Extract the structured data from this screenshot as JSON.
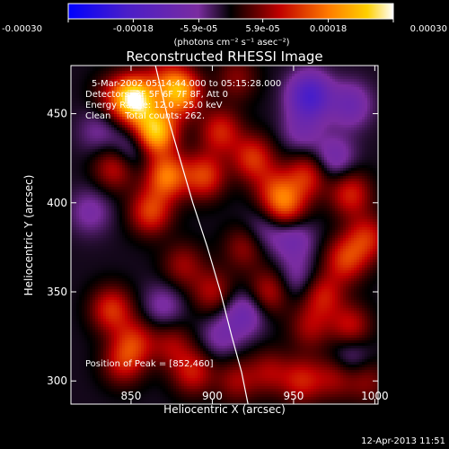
{
  "chart_data": {
    "type": "heatmap",
    "title": "Reconstructed RHESSI Image",
    "xlabel": "Heliocentric X (arcsec)",
    "ylabel": "Heliocentric Y (arcsec)",
    "xlim": [
      813,
      1002
    ],
    "ylim": [
      287,
      477
    ],
    "x_ticks": [
      850,
      900,
      950,
      1000
    ],
    "y_ticks": [
      300,
      350,
      400,
      450
    ],
    "colorbar": {
      "range": [
        -0.0003,
        0.0003
      ],
      "tick_values": [
        -0.0003,
        -0.00018,
        -5.9e-05,
        5.9e-05,
        0.00018,
        0.0003
      ],
      "tick_labels": [
        "-0.00030",
        "-0.00018",
        "-5.9e-05",
        "5.9e-05",
        "0.00018",
        "0.00030"
      ],
      "label": "(photons cm⁻² s⁻¹ asec⁻²)"
    },
    "annotations": [
      "5-Mar-2002 05:14:44.000 to 05:15:28.000",
      "Detectors: 3F 5F 6F 7F 8F, Att 0",
      "Energy Range: 12.0 - 25.0 keV",
      "Clean     Total counts: 262."
    ],
    "peak_label": "Position of Peak = [852,460]",
    "peak": [
      852,
      460
    ],
    "blobs": [
      {
        "x": 852,
        "y": 458,
        "v": 0.0003
      },
      {
        "x": 865,
        "y": 440,
        "v": 0.00026
      },
      {
        "x": 880,
        "y": 462,
        "v": 0.00022
      },
      {
        "x": 872,
        "y": 415,
        "v": 0.00018
      },
      {
        "x": 862,
        "y": 395,
        "v": 0.00014
      },
      {
        "x": 840,
        "y": 420,
        "v": 0.00011
      },
      {
        "x": 895,
        "y": 415,
        "v": 0.00014
      },
      {
        "x": 905,
        "y": 440,
        "v": 0.00012
      },
      {
        "x": 925,
        "y": 425,
        "v": 0.00013
      },
      {
        "x": 938,
        "y": 408,
        "v": 9e-05
      },
      {
        "x": 945,
        "y": 398,
        "v": 0.00015
      },
      {
        "x": 958,
        "y": 415,
        "v": 0.00012
      },
      {
        "x": 985,
        "y": 405,
        "v": 0.00012
      },
      {
        "x": 995,
        "y": 380,
        "v": 0.00012
      },
      {
        "x": 982,
        "y": 368,
        "v": 0.00013
      },
      {
        "x": 920,
        "y": 375,
        "v": 8e-05
      },
      {
        "x": 900,
        "y": 350,
        "v": 9e-05
      },
      {
        "x": 935,
        "y": 350,
        "v": 0.0001
      },
      {
        "x": 882,
        "y": 365,
        "v": 8e-05
      },
      {
        "x": 968,
        "y": 348,
        "v": 0.00011
      },
      {
        "x": 985,
        "y": 330,
        "v": 0.00011
      },
      {
        "x": 960,
        "y": 330,
        "v": 8e-05
      },
      {
        "x": 838,
        "y": 340,
        "v": 0.00013
      },
      {
        "x": 852,
        "y": 322,
        "v": 0.00011
      },
      {
        "x": 845,
        "y": 310,
        "v": 0.0001
      },
      {
        "x": 875,
        "y": 320,
        "v": 8e-05
      },
      {
        "x": 888,
        "y": 305,
        "v": 0.00011
      },
      {
        "x": 915,
        "y": 300,
        "v": 8e-05
      },
      {
        "x": 935,
        "y": 305,
        "v": 8e-05
      },
      {
        "x": 955,
        "y": 300,
        "v": 0.00011
      },
      {
        "x": 975,
        "y": 302,
        "v": 8e-05
      },
      {
        "x": 995,
        "y": 300,
        "v": 7e-05
      },
      {
        "x": 838,
        "y": 460,
        "v": 6e-05
      },
      {
        "x": 915,
        "y": 470,
        "v": 7e-05
      },
      {
        "x": 870,
        "y": 470,
        "v": 7e-05
      },
      {
        "x": 825,
        "y": 395,
        "v": -6e-05
      },
      {
        "x": 850,
        "y": 430,
        "v": -8e-05
      },
      {
        "x": 960,
        "y": 460,
        "v": -0.00018
      },
      {
        "x": 985,
        "y": 455,
        "v": -9e-05
      },
      {
        "x": 955,
        "y": 440,
        "v": -6e-05
      },
      {
        "x": 975,
        "y": 425,
        "v": -8e-05
      },
      {
        "x": 932,
        "y": 385,
        "v": -6e-05
      },
      {
        "x": 950,
        "y": 380,
        "v": -8e-05
      },
      {
        "x": 920,
        "y": 338,
        "v": -9e-05
      },
      {
        "x": 952,
        "y": 357,
        "v": -6e-05
      },
      {
        "x": 870,
        "y": 342,
        "v": -6e-05
      },
      {
        "x": 905,
        "y": 325,
        "v": -6e-05
      },
      {
        "x": 985,
        "y": 315,
        "v": -7e-05
      },
      {
        "x": 830,
        "y": 440,
        "v": -5e-05
      }
    ],
    "background_value": -1e-05,
    "limb_curve": [
      [
        865,
        477
      ],
      [
        872,
        450
      ],
      [
        880,
        425
      ],
      [
        888,
        400
      ],
      [
        897,
        375
      ],
      [
        905,
        350
      ],
      [
        912,
        325
      ],
      [
        918,
        305
      ],
      [
        922,
        287
      ]
    ]
  },
  "date_stamp": "12-Apr-2013 11:51"
}
